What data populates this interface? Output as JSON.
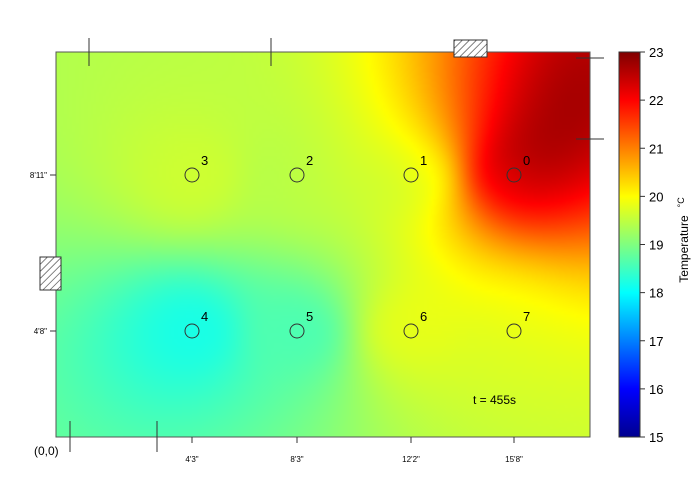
{
  "chart_data": {
    "type": "heatmap",
    "title": "",
    "time_label": "t = 455s",
    "origin_label": "(0,0)",
    "x_tick_labels": [
      "4'3\"",
      "8'3\"",
      "12'2\"",
      "15'8\""
    ],
    "y_tick_labels": [
      "8'11\"",
      "4'8\""
    ],
    "colorbar": {
      "label": "Temperature",
      "unit": "°C",
      "min": 15,
      "max": 23,
      "ticks": [
        15,
        16,
        17,
        18,
        19,
        20,
        21,
        22,
        23
      ],
      "colormap": [
        "#00008f",
        "#0000ff",
        "#00ffff",
        "#ffff00",
        "#ff0000",
        "#800000"
      ]
    },
    "sensors": [
      {
        "id": "0",
        "x": "15'8\"",
        "y": "8'11\"",
        "temperature": 21.0
      },
      {
        "id": "1",
        "x": "12'2\"",
        "y": "8'11\"",
        "temperature": 19.3
      },
      {
        "id": "2",
        "x": "8'3\"",
        "y": "8'11\"",
        "temperature": 19.4
      },
      {
        "id": "3",
        "x": "4'3\"",
        "y": "8'11\"",
        "temperature": 19.6
      },
      {
        "id": "4",
        "x": "4'3\"",
        "y": "4'8\"",
        "temperature": 18.2
      },
      {
        "id": "5",
        "x": "8'3\"",
        "y": "4'8\"",
        "temperature": 18.6
      },
      {
        "id": "6",
        "x": "12'2\"",
        "y": "4'8\"",
        "temperature": 19.7
      },
      {
        "id": "7",
        "x": "15'8\"",
        "y": "4'8\"",
        "temperature": 19.6
      }
    ],
    "grid": false,
    "legend": "colorbar-right"
  }
}
